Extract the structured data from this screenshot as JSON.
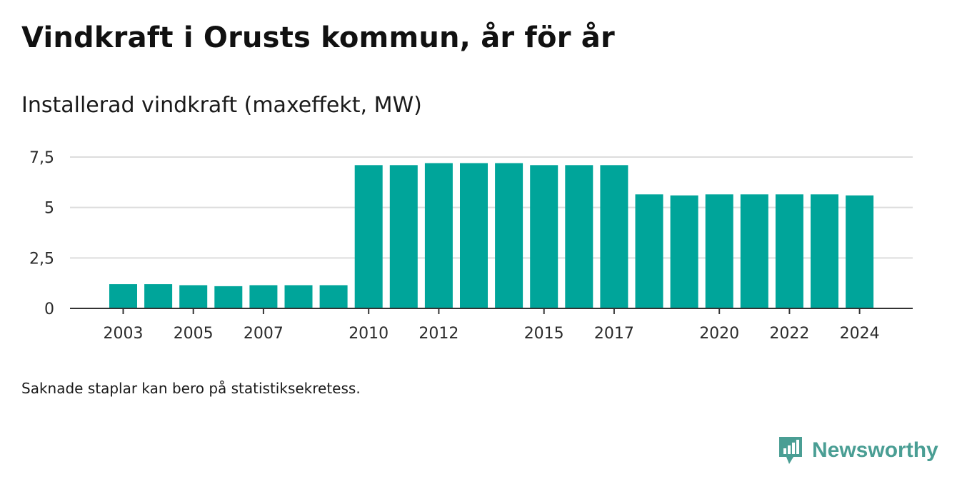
{
  "title": "Vindkraft i Orusts kommun, år för år",
  "subtitle": "Installerad vindkraft (maxeffekt, MW)",
  "note": "Saknade staplar kan bero på statistiksekretess.",
  "brand": {
    "name": "Newsworthy",
    "icon": "newsworthy-logo-icon"
  },
  "colors": {
    "bar": "#00a59a",
    "grid": "#dddddd",
    "axis": "#333333"
  },
  "chart_data": {
    "type": "bar",
    "x": [
      2003,
      2004,
      2005,
      2006,
      2007,
      2008,
      2009,
      2010,
      2011,
      2012,
      2013,
      2014,
      2015,
      2016,
      2017,
      2018,
      2019,
      2020,
      2021,
      2022,
      2023,
      2024
    ],
    "values": [
      1.2,
      1.2,
      1.15,
      1.1,
      1.15,
      1.15,
      1.15,
      7.1,
      7.1,
      7.2,
      7.2,
      7.2,
      7.1,
      7.1,
      7.1,
      5.65,
      5.6,
      5.65,
      5.65,
      5.65,
      5.65,
      5.6
    ],
    "x_tick_labels": [
      "2003",
      "2005",
      "2007",
      "2010",
      "2012",
      "2015",
      "2017",
      "2020",
      "2022",
      "2024"
    ],
    "y_ticks": [
      0,
      2.5,
      5,
      7.5
    ],
    "y_tick_labels": [
      "0",
      "2,5",
      "5",
      "7,5"
    ],
    "ylim": [
      0,
      7.5
    ],
    "xlabel": "",
    "ylabel": "",
    "grid": true
  }
}
